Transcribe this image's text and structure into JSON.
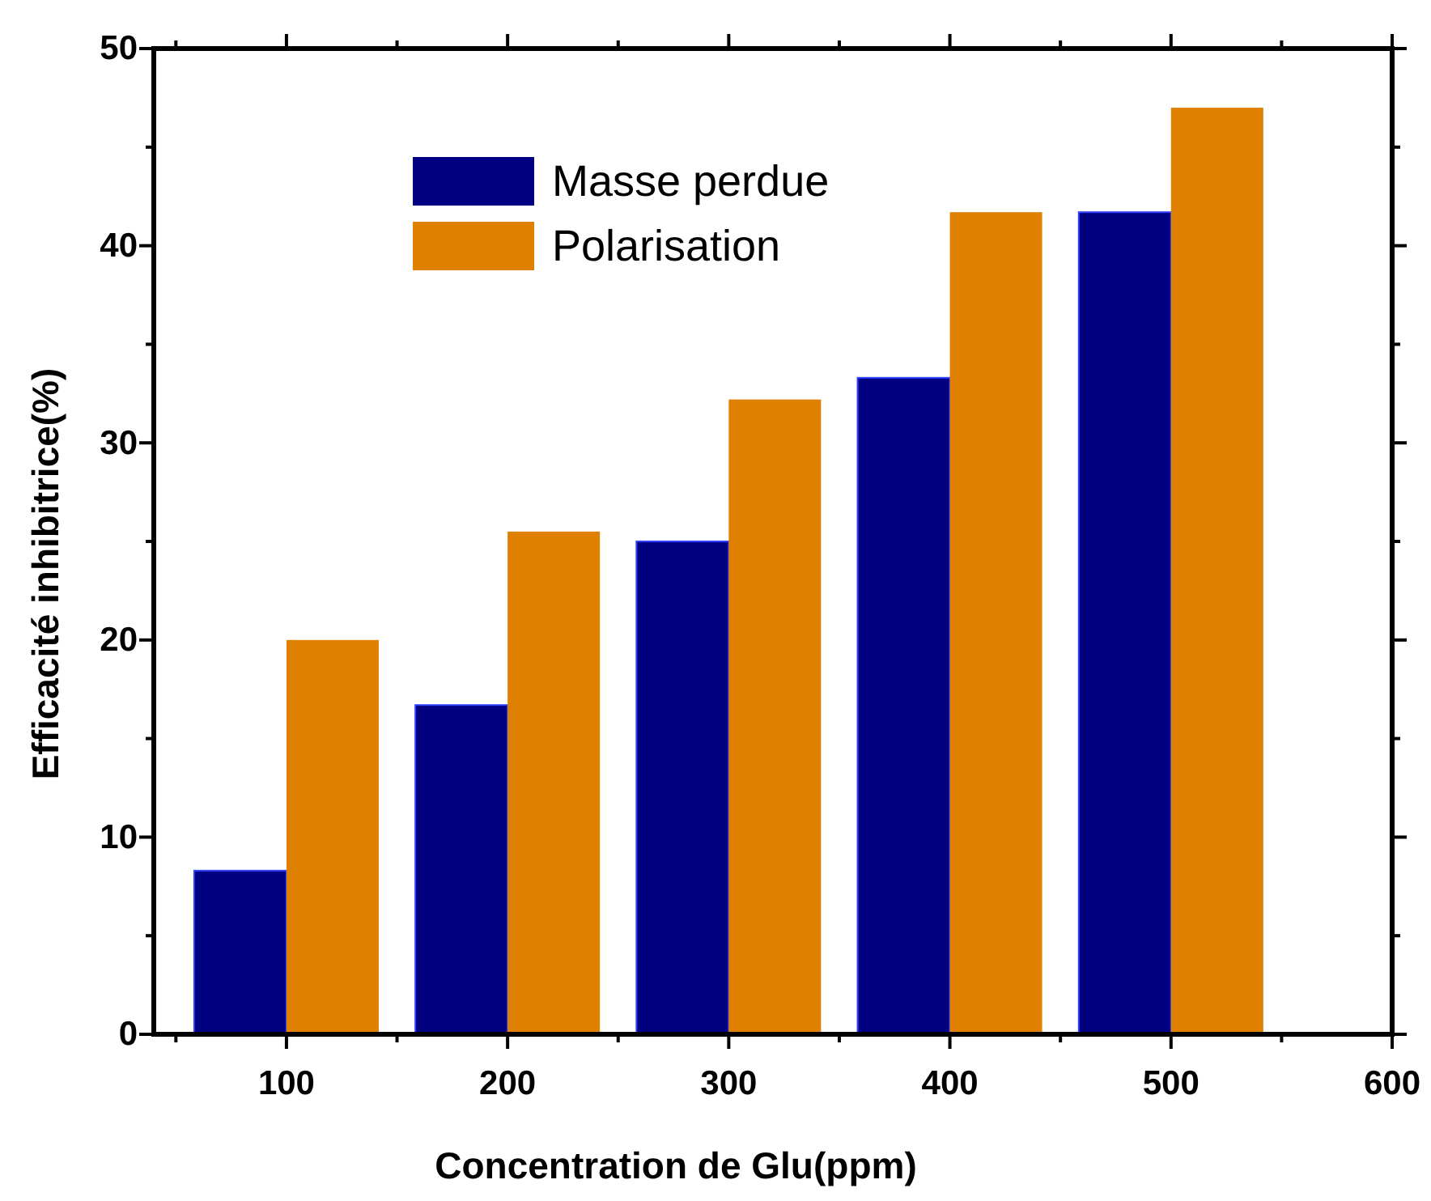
{
  "chart_data": {
    "type": "bar",
    "xlabel": "Concentration de Glu(ppm)",
    "ylabel": "Efficacité inhibitrice(%)",
    "x": [
      100,
      200,
      300,
      400,
      500
    ],
    "series": [
      {
        "name": "Masse perdue",
        "color": "#000080",
        "values": [
          8.3,
          16.7,
          25.0,
          33.3,
          41.7
        ]
      },
      {
        "name": "Polarisation",
        "color": "#e08000",
        "values": [
          20.0,
          25.5,
          32.2,
          41.7,
          47.0
        ]
      }
    ],
    "xlim": [
      40,
      600
    ],
    "xticks": [
      {
        "value": 50,
        "label": null
      },
      100,
      {
        "value": 150,
        "label": null
      },
      200,
      {
        "value": 250,
        "label": null
      },
      300,
      {
        "value": 350,
        "label": null
      },
      400,
      {
        "value": 450,
        "label": null
      },
      500,
      {
        "value": 550,
        "label": null
      },
      600
    ],
    "ylim": [
      0,
      50
    ],
    "yticks": [
      0,
      {
        "value": 5,
        "label": null
      },
      10,
      {
        "value": 15,
        "label": null
      },
      20,
      {
        "value": 25,
        "label": null
      },
      30,
      {
        "value": 35,
        "label": null
      },
      40,
      {
        "value": 45,
        "label": null
      },
      50
    ],
    "legend": "top left",
    "grid": false
  }
}
